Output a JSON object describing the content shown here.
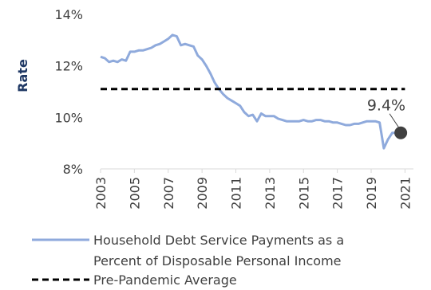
{
  "chart_data": {
    "type": "line",
    "ylabel": "Rate",
    "xlabel": "",
    "ylim": [
      8,
      14
    ],
    "xlim": [
      2003,
      2021.5
    ],
    "y_ticks": [
      "8%",
      "10%",
      "12%",
      "14%"
    ],
    "x_ticks": [
      "2003",
      "2005",
      "2007",
      "2009",
      "2011",
      "2013",
      "2015",
      "2017",
      "2019",
      "2021"
    ],
    "grid": false,
    "legend_position": "bottom",
    "series": [
      {
        "name": "Household Debt Service Payments as a Percent of Disposable Personal Income",
        "color": "#8faadc",
        "style": "solid",
        "x": [
          2003.0,
          2003.25,
          2003.5,
          2003.75,
          2004.0,
          2004.25,
          2004.5,
          2004.75,
          2005.0,
          2005.25,
          2005.5,
          2005.75,
          2006.0,
          2006.25,
          2006.5,
          2006.75,
          2007.0,
          2007.25,
          2007.5,
          2007.75,
          2008.0,
          2008.25,
          2008.5,
          2008.75,
          2009.0,
          2009.25,
          2009.5,
          2009.75,
          2010.0,
          2010.25,
          2010.5,
          2010.75,
          2011.0,
          2011.25,
          2011.5,
          2011.75,
          2012.0,
          2012.25,
          2012.5,
          2012.75,
          2013.0,
          2013.25,
          2013.5,
          2013.75,
          2014.0,
          2014.25,
          2014.5,
          2014.75,
          2015.0,
          2015.25,
          2015.5,
          2015.75,
          2016.0,
          2016.25,
          2016.5,
          2016.75,
          2017.0,
          2017.25,
          2017.5,
          2017.75,
          2018.0,
          2018.25,
          2018.5,
          2018.75,
          2019.0,
          2019.25,
          2019.5,
          2019.75,
          2020.0,
          2020.25,
          2020.5,
          2020.75
        ],
        "values": [
          12.35,
          12.3,
          12.15,
          12.2,
          12.15,
          12.25,
          12.2,
          12.55,
          12.55,
          12.6,
          12.6,
          12.65,
          12.7,
          12.8,
          12.85,
          12.95,
          13.05,
          13.2,
          13.15,
          12.8,
          12.85,
          12.8,
          12.75,
          12.4,
          12.25,
          12.0,
          11.7,
          11.35,
          11.1,
          10.9,
          10.75,
          10.65,
          10.55,
          10.45,
          10.2,
          10.05,
          10.1,
          9.85,
          10.15,
          10.05,
          10.05,
          10.05,
          9.95,
          9.9,
          9.85,
          9.85,
          9.85,
          9.85,
          9.9,
          9.85,
          9.85,
          9.9,
          9.9,
          9.85,
          9.85,
          9.8,
          9.8,
          9.75,
          9.7,
          9.7,
          9.75,
          9.75,
          9.8,
          9.85,
          9.85,
          9.85,
          9.8,
          8.8,
          9.15,
          9.4,
          9.4,
          9.4
        ]
      },
      {
        "name": "Pre-Pandemic Average",
        "color": "#000000",
        "style": "dashed",
        "x": [
          2003.0,
          2021.0
        ],
        "values": [
          11.1,
          11.1
        ]
      }
    ],
    "annotations": [
      {
        "text": "9.4%",
        "x": 2020.75,
        "y": 9.4
      }
    ]
  }
}
